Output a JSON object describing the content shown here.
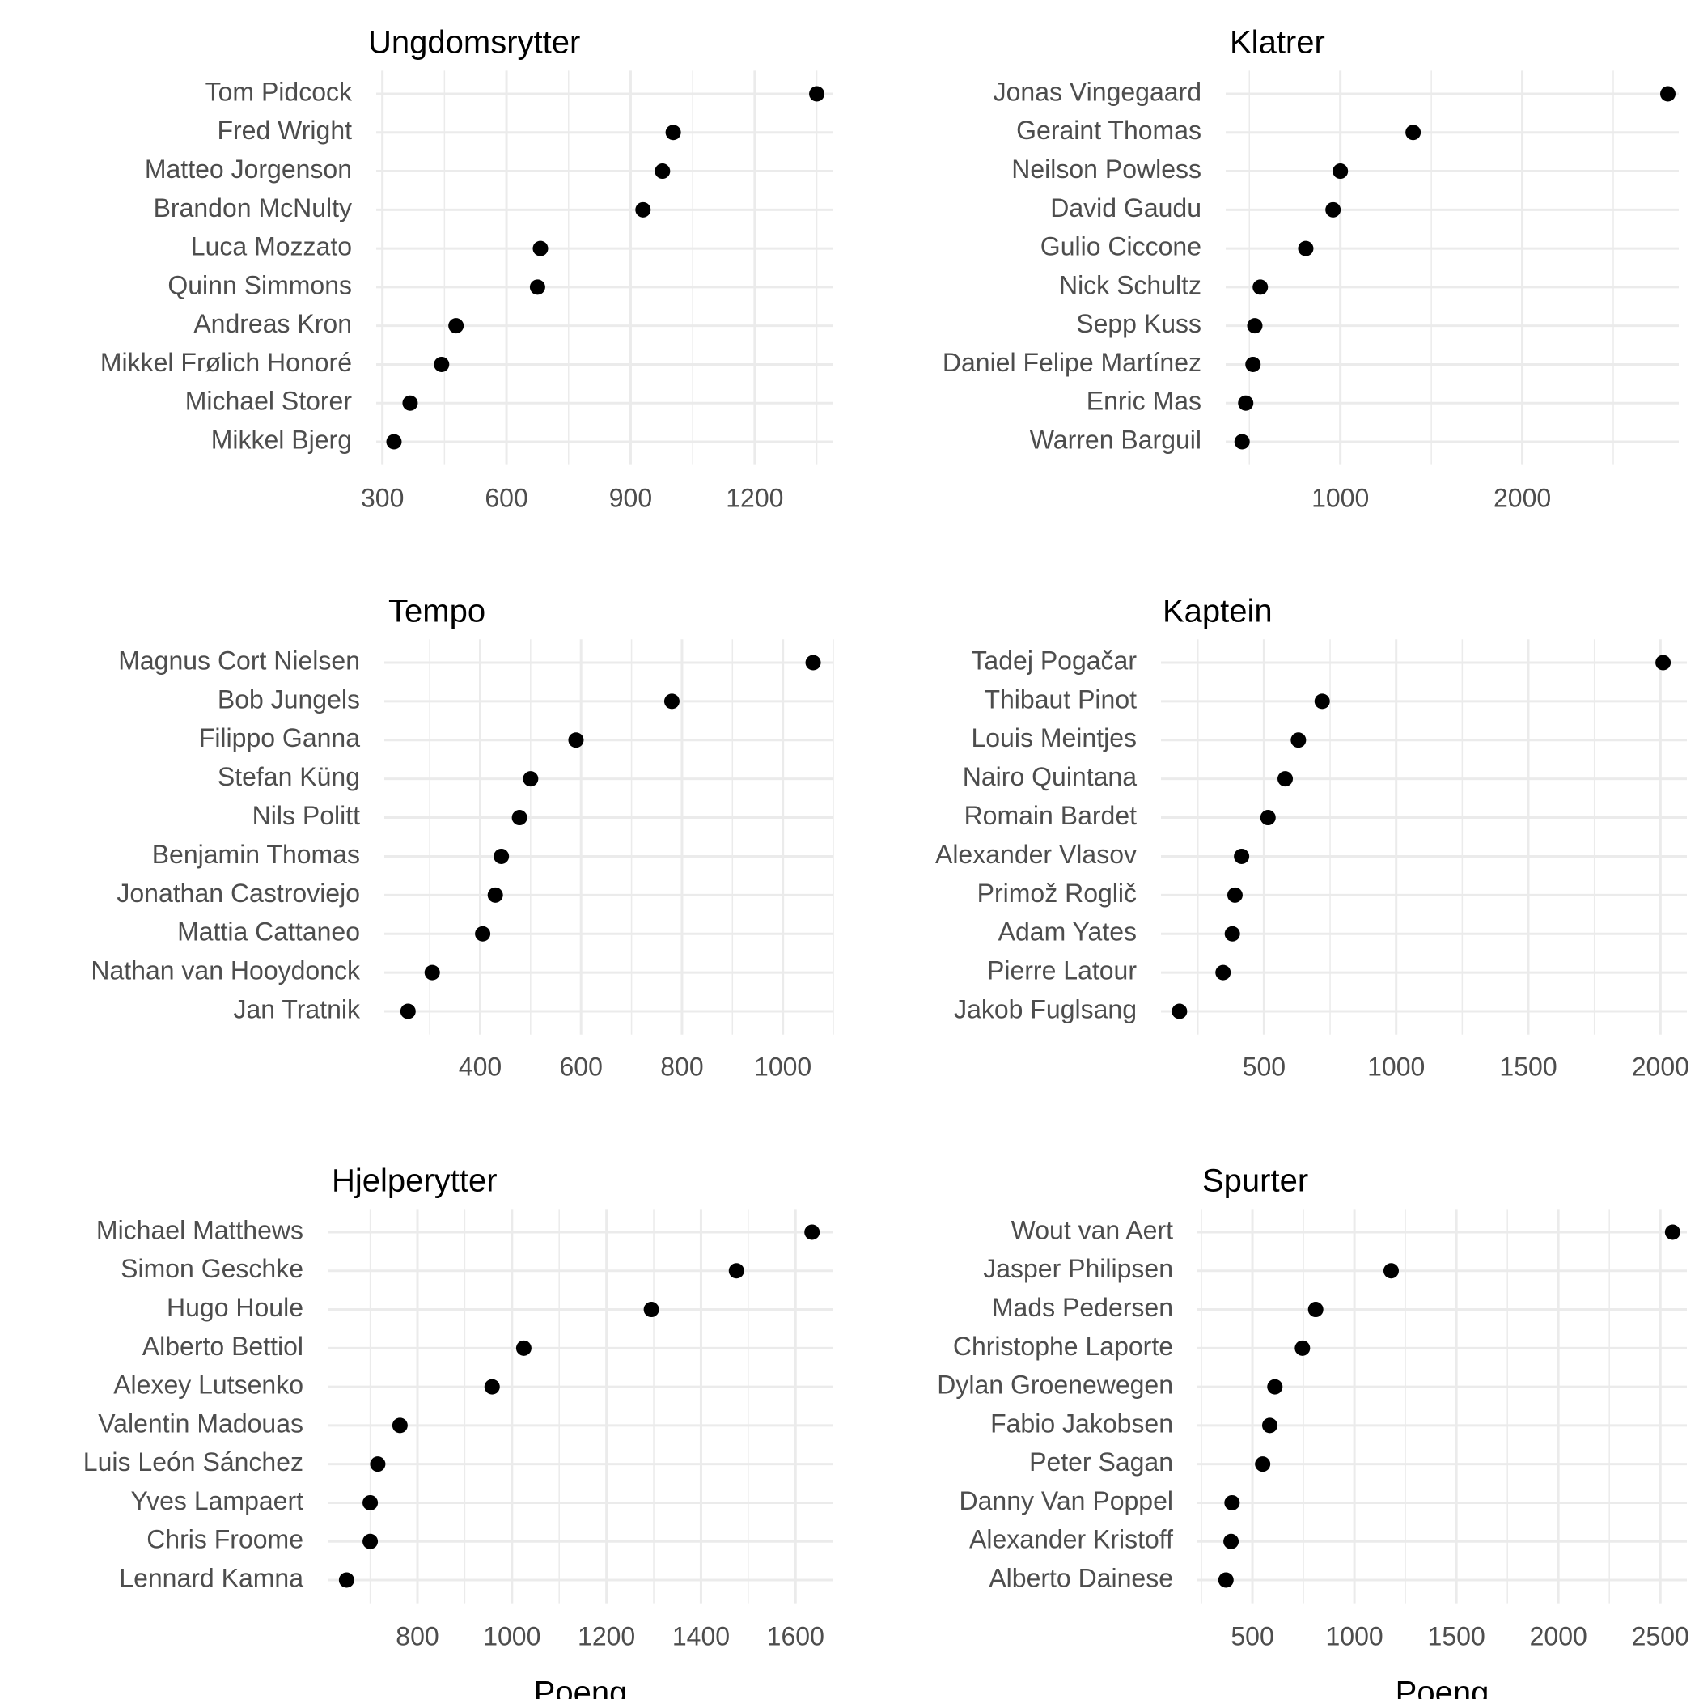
{
  "chart_data": [
    {
      "type": "scatter",
      "title": "Ungdomsrytter",
      "xlabel": "",
      "xlim": [
        285,
        1390
      ],
      "xticks": [
        300,
        600,
        900,
        1200
      ],
      "xtick_labels": [
        "300",
        "600",
        "900",
        "1200"
      ],
      "grid": true,
      "categories": [
        "Tom Pidcock",
        "Fred Wright",
        "Matteo Jorgenson",
        "Brandon McNulty",
        "Luca Mozzato",
        "Quinn Simmons",
        "Andreas Kron",
        "Mikkel Frølich Honoré",
        "Michael Storer",
        "Mikkel Bjerg"
      ],
      "values": [
        1350,
        1003,
        977,
        930,
        682,
        675,
        478,
        443,
        367,
        328
      ]
    },
    {
      "type": "scatter",
      "title": "Klatrer",
      "xlabel": "",
      "xlim": [
        370,
        2860
      ],
      "xticks": [
        1000,
        2000
      ],
      "xtick_labels": [
        "1000",
        "2000"
      ],
      "grid": true,
      "categories": [
        "Jonas Vingegaard",
        "Geraint Thomas",
        "Neilson Powless",
        "David Gaudu",
        "Gulio Ciccone",
        "Nick Schultz",
        "Sepp Kuss",
        "Daniel Felipe Martínez",
        "Enric Mas",
        "Warren Barguil"
      ],
      "values": [
        2800,
        1400,
        1000,
        960,
        810,
        560,
        530,
        520,
        480,
        460
      ]
    },
    {
      "type": "scatter",
      "title": "Tempo",
      "xlabel": "",
      "xlim": [
        210,
        1100
      ],
      "xticks": [
        400,
        600,
        800,
        1000
      ],
      "xtick_labels": [
        "400",
        "600",
        "800",
        "1000"
      ],
      "grid": true,
      "categories": [
        "Magnus Cort Nielsen",
        "Bob Jungels",
        "Filippo Ganna",
        "Stefan Küng",
        "Nils Politt",
        "Benjamin Thomas",
        "Jonathan Castroviejo",
        "Mattia Cattaneo",
        "Nathan van Hooydonck",
        "Jan Tratnik"
      ],
      "values": [
        1060,
        780,
        590,
        500,
        478,
        442,
        430,
        405,
        305,
        257
      ]
    },
    {
      "type": "scatter",
      "title": "Kaptein",
      "xlabel": "",
      "xlim": [
        110,
        2100
      ],
      "xticks": [
        500,
        1000,
        1500,
        2000
      ],
      "xtick_labels": [
        "500",
        "1000",
        "1500",
        "2000"
      ],
      "grid": true,
      "categories": [
        "Tadej Pogačar",
        "Thibaut Pinot",
        "Louis Meintjes",
        "Nairo Quintana",
        "Romain Bardet",
        "Alexander Vlasov",
        "Primož Roglič",
        "Adam Yates",
        "Pierre Latour",
        "Jakob Fuglsang"
      ],
      "values": [
        2010,
        720,
        630,
        580,
        515,
        415,
        390,
        380,
        345,
        180
      ]
    },
    {
      "type": "scatter",
      "title": "Hjelperytter",
      "xlabel": "Poeng",
      "xlim": [
        610,
        1680
      ],
      "xticks": [
        800,
        1000,
        1200,
        1400,
        1600
      ],
      "xtick_labels": [
        "800",
        "1000",
        "1200",
        "1400",
        "1600"
      ],
      "grid": true,
      "categories": [
        "Michael Matthews",
        "Simon Geschke",
        "Hugo Houle",
        "Alberto Bettiol",
        "Alexey Lutsenko",
        "Valentin Madouas",
        "Luis León Sánchez",
        "Yves Lampaert",
        "Chris Froome",
        "Lennard Kamna"
      ],
      "values": [
        1635,
        1475,
        1295,
        1025,
        958,
        763,
        716,
        700,
        700,
        650
      ]
    },
    {
      "type": "scatter",
      "title": "Spurter",
      "xlabel": "Poeng",
      "xlim": [
        230,
        2630
      ],
      "xticks": [
        500,
        1000,
        1500,
        2000,
        2500
      ],
      "xtick_labels": [
        "500",
        "1000",
        "1500",
        "2000",
        "2500"
      ],
      "grid": true,
      "categories": [
        "Wout van Aert",
        "Jasper Philipsen",
        "Mads Pedersen",
        "Christophe Laporte",
        "Dylan Groenewegen",
        "Fabio Jakobsen",
        "Peter Sagan",
        "Danny Van Poppel",
        "Alexander Kristoff",
        "Alberto Dainese"
      ],
      "values": [
        2560,
        1180,
        810,
        745,
        610,
        585,
        550,
        400,
        395,
        370
      ]
    }
  ]
}
